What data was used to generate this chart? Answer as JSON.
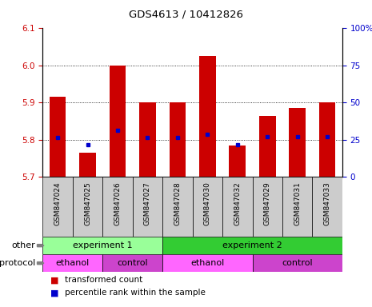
{
  "title": "GDS4613 / 10412826",
  "samples": [
    "GSM847024",
    "GSM847025",
    "GSM847026",
    "GSM847027",
    "GSM847028",
    "GSM847030",
    "GSM847032",
    "GSM847029",
    "GSM847031",
    "GSM847033"
  ],
  "bar_values": [
    5.915,
    5.765,
    6.0,
    5.9,
    5.9,
    6.025,
    5.785,
    5.865,
    5.885,
    5.9
  ],
  "percentile_values": [
    5.805,
    5.787,
    5.825,
    5.805,
    5.805,
    5.815,
    5.787,
    5.808,
    5.808,
    5.808
  ],
  "y_min": 5.7,
  "y_max": 6.1,
  "y_ticks_left": [
    5.7,
    5.8,
    5.9,
    6.0,
    6.1
  ],
  "y_ticks_right": [
    0,
    25,
    50,
    75,
    100
  ],
  "bar_color": "#cc0000",
  "percentile_color": "#0000cc",
  "experiment1_color": "#99ff99",
  "experiment2_color": "#33cc33",
  "ethanol_color": "#ff66ff",
  "control_color": "#cc44cc",
  "tick_color_left": "#cc0000",
  "tick_color_right": "#0000cc",
  "other_label": "other",
  "protocol_label": "protocol",
  "legend_transformed": "transformed count",
  "legend_percentile": "percentile rank within the sample",
  "experiment1_label": "experiment 1",
  "experiment2_label": "experiment 2",
  "ethanol_label": "ethanol",
  "control_label": "control",
  "xlabels_bg": "#cccccc",
  "n_exp1": 4,
  "n_exp2": 6,
  "n_eth1": 2,
  "n_ctl1": 2,
  "n_eth2": 3,
  "n_ctl2": 3
}
